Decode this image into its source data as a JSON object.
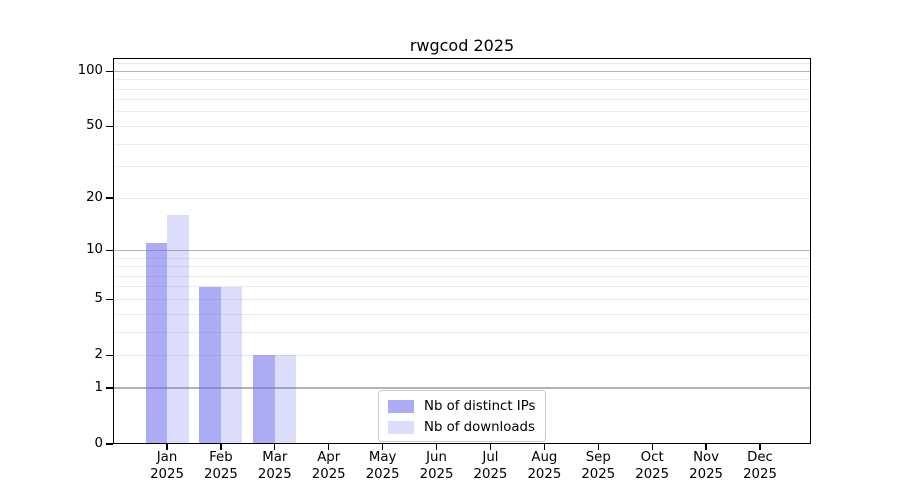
{
  "title": "rwgcod 2025",
  "chart_data": {
    "type": "bar",
    "title": "rwgcod 2025",
    "x_categories": [
      "Jan",
      "Feb",
      "Mar",
      "Apr",
      "May",
      "Jun",
      "Jul",
      "Aug",
      "Sep",
      "Oct",
      "Nov",
      "Dec"
    ],
    "x_year_label": "2025",
    "series": [
      {
        "name": "Nb of distinct IPs",
        "color": "rgba(102,102,238,0.55)",
        "values": [
          11,
          6,
          2,
          0,
          0,
          0,
          0,
          0,
          0,
          0,
          0,
          0
        ]
      },
      {
        "name": "Nb of downloads",
        "color": "rgba(102,102,238,0.23)",
        "values": [
          16,
          6,
          2,
          0,
          0,
          0,
          0,
          0,
          0,
          0,
          0,
          0
        ]
      }
    ],
    "y_axis": {
      "scale": "log1p",
      "tick_values": [
        0,
        1,
        2,
        5,
        10,
        20,
        50,
        100
      ],
      "major_gridlines": [
        1,
        10,
        100
      ],
      "minor_gridlines": [
        2,
        3,
        4,
        5,
        6,
        7,
        8,
        9,
        20,
        30,
        40,
        50,
        60,
        70,
        80,
        90,
        110
      ],
      "max": 118
    },
    "grid": true,
    "legend_position": "bottom-center",
    "colors": {
      "bar_ips_on_white": "#aaaaf5",
      "bar_downloads_on_white": "#dcdcf8",
      "major_grid": "#b3b3b3",
      "minor_grid": "#ebebeb",
      "axis": "#000000",
      "legend_border": "#cccccc"
    }
  }
}
